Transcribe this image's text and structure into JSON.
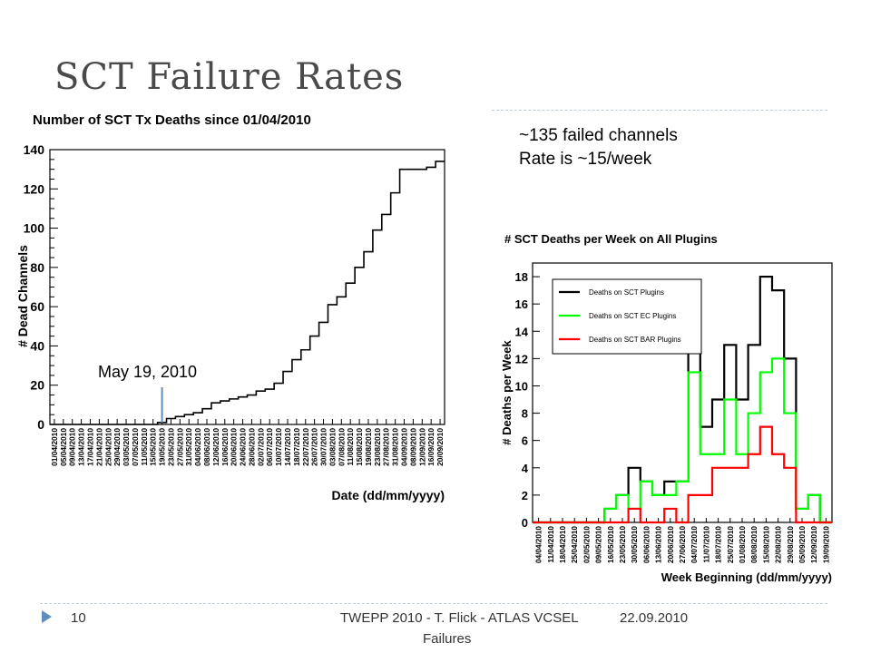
{
  "slide": {
    "title": "SCT Failure Rates",
    "notes": [
      "~135 failed channels",
      "Rate is ~15/week"
    ],
    "annotation": "May 19, 2010",
    "footer_page": "10",
    "footer_text_line1": "TWEPP 2010 - T. Flick - ATLAS VCSEL",
    "footer_text_line2": "Failures",
    "footer_date": "22.09.2010"
  },
  "colors": {
    "title": "#4a4a4a",
    "accent": "#5f8fb8",
    "black": "#000000",
    "green": "#00ff00",
    "red": "#ff0000"
  },
  "chart_data": [
    {
      "type": "line",
      "title": "Number of SCT Tx Deaths since 01/04/2010",
      "xlabel": "Date (dd/mm/yyyy)",
      "ylabel": "# Dead Channels",
      "ylim": [
        0,
        140
      ],
      "yticks": [
        0,
        20,
        40,
        60,
        80,
        100,
        120,
        140
      ],
      "categories": [
        "01/04/2010",
        "05/04/2010",
        "09/04/2010",
        "13/04/2010",
        "17/04/2010",
        "21/04/2010",
        "25/04/2010",
        "29/04/2010",
        "03/05/2010",
        "07/05/2010",
        "11/05/2010",
        "15/05/2010",
        "19/05/2010",
        "23/05/2010",
        "27/05/2010",
        "31/05/2010",
        "04/06/2010",
        "08/06/2010",
        "12/06/2010",
        "16/06/2010",
        "20/06/2010",
        "24/06/2010",
        "28/06/2010",
        "02/07/2010",
        "06/07/2010",
        "10/07/2010",
        "14/07/2010",
        "18/07/2010",
        "22/07/2010",
        "26/07/2010",
        "30/07/2010",
        "03/08/2010",
        "07/08/2010",
        "11/08/2010",
        "15/08/2010",
        "19/08/2010",
        "23/08/2010",
        "27/08/2010",
        "31/08/2010",
        "04/09/2010",
        "08/09/2010",
        "12/09/2010",
        "16/09/2010",
        "20/09/2010"
      ],
      "series": [
        {
          "values": [
            0,
            0,
            0,
            0,
            0,
            0,
            0,
            0,
            0,
            0,
            0,
            0,
            1,
            3,
            4,
            5,
            6,
            8,
            11,
            12,
            13,
            14,
            15,
            17,
            18,
            21,
            27,
            33,
            38,
            45,
            52,
            61,
            65,
            72,
            80,
            88,
            99,
            107,
            118,
            130,
            130,
            130,
            131,
            134
          ]
        }
      ],
      "annotation": {
        "text": "May 19, 2010",
        "x": "19/05/2010"
      }
    },
    {
      "type": "line",
      "title": "# SCT Deaths per Week on All Plugins",
      "xlabel": "Week Beginning (dd/mm/yyyy)",
      "ylabel": "# Deaths per Week",
      "ylim": [
        0,
        19
      ],
      "yticks": [
        0,
        2,
        4,
        6,
        8,
        10,
        12,
        14,
        16,
        18
      ],
      "legend_position": "top-left",
      "categories": [
        "04/04/2010",
        "11/04/2010",
        "18/04/2010",
        "25/04/2010",
        "02/05/2010",
        "09/05/2010",
        "16/05/2010",
        "23/05/2010",
        "30/05/2010",
        "06/06/2010",
        "13/06/2010",
        "20/06/2010",
        "27/06/2010",
        "04/07/2010",
        "11/07/2010",
        "18/07/2010",
        "25/07/2010",
        "01/08/2010",
        "08/08/2010",
        "15/08/2010",
        "22/08/2010",
        "29/08/2010",
        "05/09/2010",
        "12/09/2010",
        "19/09/2010"
      ],
      "series": [
        {
          "name": "Deaths on SCT Plugins",
          "color": "#000000",
          "values": [
            0,
            0,
            0,
            0,
            0,
            0,
            1,
            2,
            4,
            3,
            2,
            3,
            3,
            13,
            7,
            9,
            13,
            9,
            13,
            18,
            17,
            12,
            1,
            2,
            0
          ]
        },
        {
          "name": "Deaths on SCT EC Plugins",
          "color": "#00ff00",
          "values": [
            0,
            0,
            0,
            0,
            0,
            0,
            1,
            2,
            1,
            3,
            2,
            2,
            3,
            11,
            5,
            5,
            9,
            5,
            8,
            11,
            12,
            8,
            1,
            2,
            0
          ]
        },
        {
          "name": "Deaths on SCT BAR Plugins",
          "color": "#ff0000",
          "values": [
            0,
            0,
            0,
            0,
            0,
            0,
            0,
            0,
            1,
            0,
            0,
            1,
            0,
            2,
            2,
            4,
            4,
            4,
            5,
            7,
            5,
            4,
            0,
            0,
            0
          ]
        }
      ]
    }
  ]
}
